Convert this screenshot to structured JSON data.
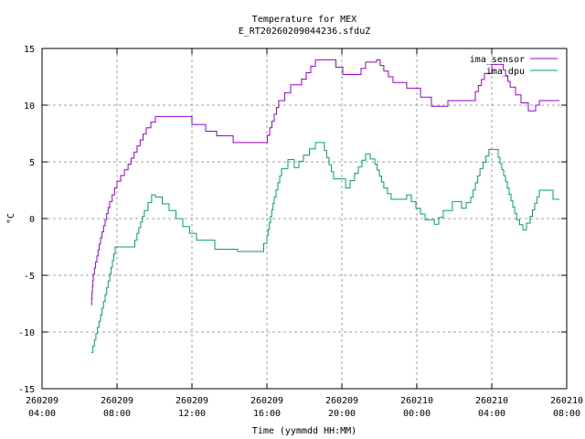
{
  "chart_data": {
    "type": "line",
    "title": "Temperature for MEX",
    "subtitle": "E_RT20260209044236.sfduZ",
    "xlabel": "Time (yymmdd HH:MM)",
    "ylabel": "°C",
    "x_units": "hours since 260209 04:00",
    "xlim": [
      0,
      28
    ],
    "ylim": [
      -15,
      15
    ],
    "grid": true,
    "legend_position": "top-right",
    "yticks": [
      -15,
      -10,
      -5,
      0,
      5,
      10,
      15
    ],
    "xticks": [
      {
        "value": 0,
        "date": "260209",
        "time": "04:00"
      },
      {
        "value": 4,
        "date": "260209",
        "time": "08:00"
      },
      {
        "value": 8,
        "date": "260209",
        "time": "12:00"
      },
      {
        "value": 12,
        "date": "260209",
        "time": "16:00"
      },
      {
        "value": 16,
        "date": "260209",
        "time": "20:00"
      },
      {
        "value": 20,
        "date": "260210",
        "time": "00:00"
      },
      {
        "value": 24,
        "date": "260210",
        "time": "04:00"
      },
      {
        "value": 28,
        "date": "260210",
        "time": "08:00"
      }
    ],
    "series": [
      {
        "name": "ima_sensor",
        "color": "#9400d3",
        "x": [
          2.63,
          2.73,
          3.12,
          3.61,
          4.0,
          4.59,
          5.07,
          5.56,
          6.05,
          7.37,
          8.0,
          8.73,
          9.32,
          10.2,
          11.9,
          12.15,
          12.63,
          13.27,
          13.85,
          14.59,
          15.32,
          16.05,
          16.78,
          17.27,
          17.85,
          18.24,
          18.73,
          19.46,
          20.2,
          20.78,
          21.51,
          21.66,
          22.73,
          23.12,
          23.61,
          24.0,
          24.49,
          24.98,
          25.56,
          25.95,
          26.34,
          26.54,
          27.61
        ],
        "y": [
          -7.6,
          -4.9,
          -1.7,
          1.5,
          3.3,
          4.8,
          6.4,
          8.0,
          9.0,
          9.0,
          8.3,
          7.7,
          7.3,
          6.7,
          6.7,
          8.0,
          10.4,
          11.8,
          12.3,
          14.0,
          14.0,
          12.7,
          12.7,
          13.8,
          14.0,
          13.0,
          12.0,
          11.5,
          10.7,
          9.9,
          9.9,
          10.4,
          10.4,
          11.2,
          12.8,
          13.6,
          13.6,
          11.6,
          10.2,
          9.5,
          10.0,
          10.4,
          10.4
        ]
      },
      {
        "name": "ima_dpu",
        "color": "#009e73",
        "x": [
          2.63,
          3.12,
          3.61,
          3.9,
          4.83,
          5.07,
          5.46,
          5.85,
          6.05,
          6.78,
          7.51,
          8.24,
          9.22,
          10.44,
          11.66,
          12.0,
          12.39,
          12.78,
          13.12,
          13.46,
          13.95,
          14.59,
          15.07,
          15.56,
          16.2,
          16.68,
          17.27,
          17.76,
          18.24,
          18.63,
          19.46,
          19.95,
          20.44,
          20.93,
          21.41,
          21.9,
          22.39,
          22.88,
          23.37,
          23.85,
          24.34,
          24.83,
          25.32,
          25.66,
          26.05,
          26.54,
          26.93,
          27.27,
          27.61
        ],
        "y": [
          -11.8,
          -8.5,
          -4.9,
          -2.5,
          -2.5,
          -1.3,
          0.7,
          2.1,
          1.9,
          0.7,
          -0.7,
          -1.9,
          -2.7,
          -2.9,
          -2.9,
          -1.5,
          1.9,
          4.4,
          5.2,
          4.5,
          5.6,
          6.7,
          6.0,
          3.5,
          2.7,
          4.0,
          5.7,
          4.8,
          2.7,
          1.7,
          2.1,
          0.9,
          -0.1,
          -0.5,
          0.7,
          1.5,
          0.9,
          1.9,
          4.4,
          6.1,
          5.4,
          2.7,
          -0.1,
          -1.0,
          0.2,
          2.5,
          2.5,
          1.7,
          1.7
        ]
      }
    ]
  }
}
